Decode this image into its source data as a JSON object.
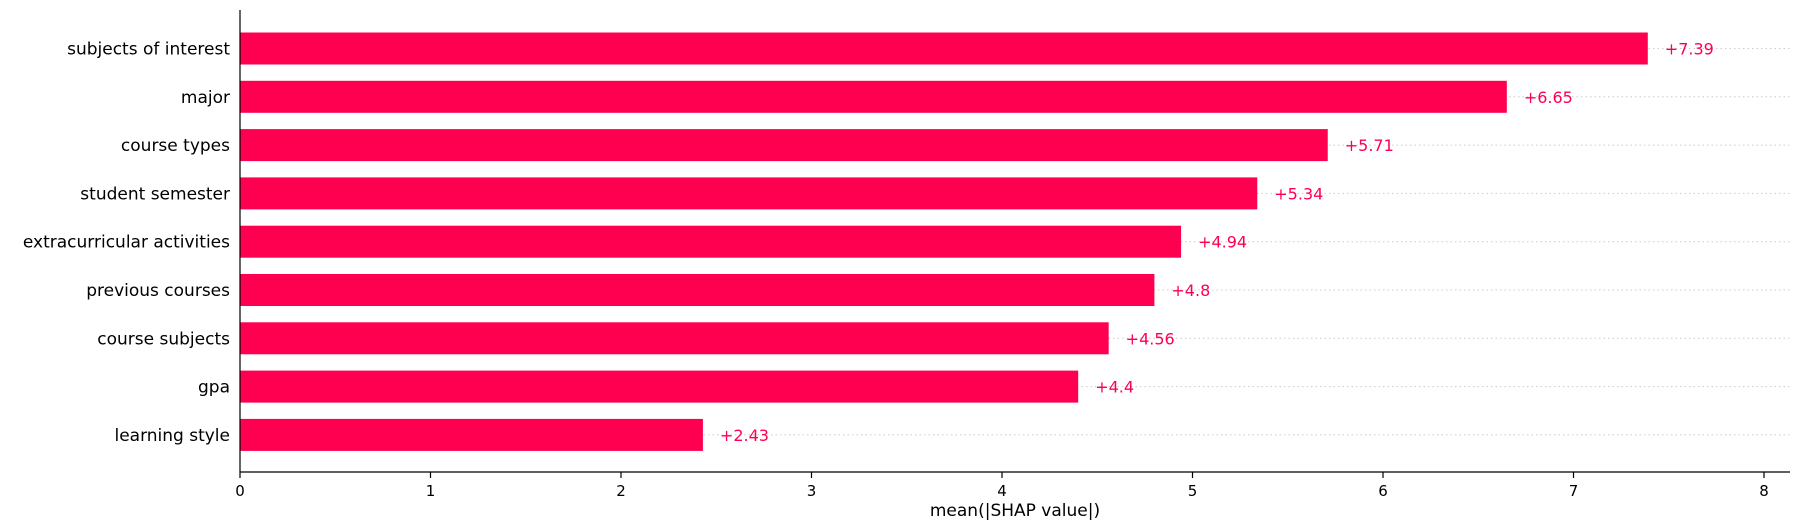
{
  "chart_data": {
    "type": "bar",
    "orientation": "horizontal",
    "categories": [
      "subjects of interest",
      "major",
      "course types",
      "student semester",
      "extracurricular activities",
      "previous courses",
      "course subjects",
      "gpa",
      "learning style"
    ],
    "values": [
      7.39,
      6.65,
      5.71,
      5.34,
      4.94,
      4.8,
      4.56,
      4.4,
      2.43
    ],
    "value_labels": [
      "+7.39",
      "+6.65",
      "+5.71",
      "+5.34",
      "+4.94",
      "+4.8",
      "+4.56",
      "+4.4",
      "+2.43"
    ],
    "xlabel": "mean(|SHAP value|)",
    "ylabel": "",
    "title": "",
    "xlim": [
      0,
      8.15
    ],
    "xticks": [
      0,
      1,
      2,
      3,
      4,
      5,
      6,
      7,
      8
    ],
    "xtick_labels": [
      "0",
      "1",
      "2",
      "3",
      "4",
      "5",
      "6",
      "7",
      "8"
    ],
    "grid": "dotted row guides",
    "legend": "none",
    "colors": {
      "bar": "#ff0051",
      "text": "#ff0051",
      "axis": "#000000",
      "guide": "#cccccc"
    }
  }
}
